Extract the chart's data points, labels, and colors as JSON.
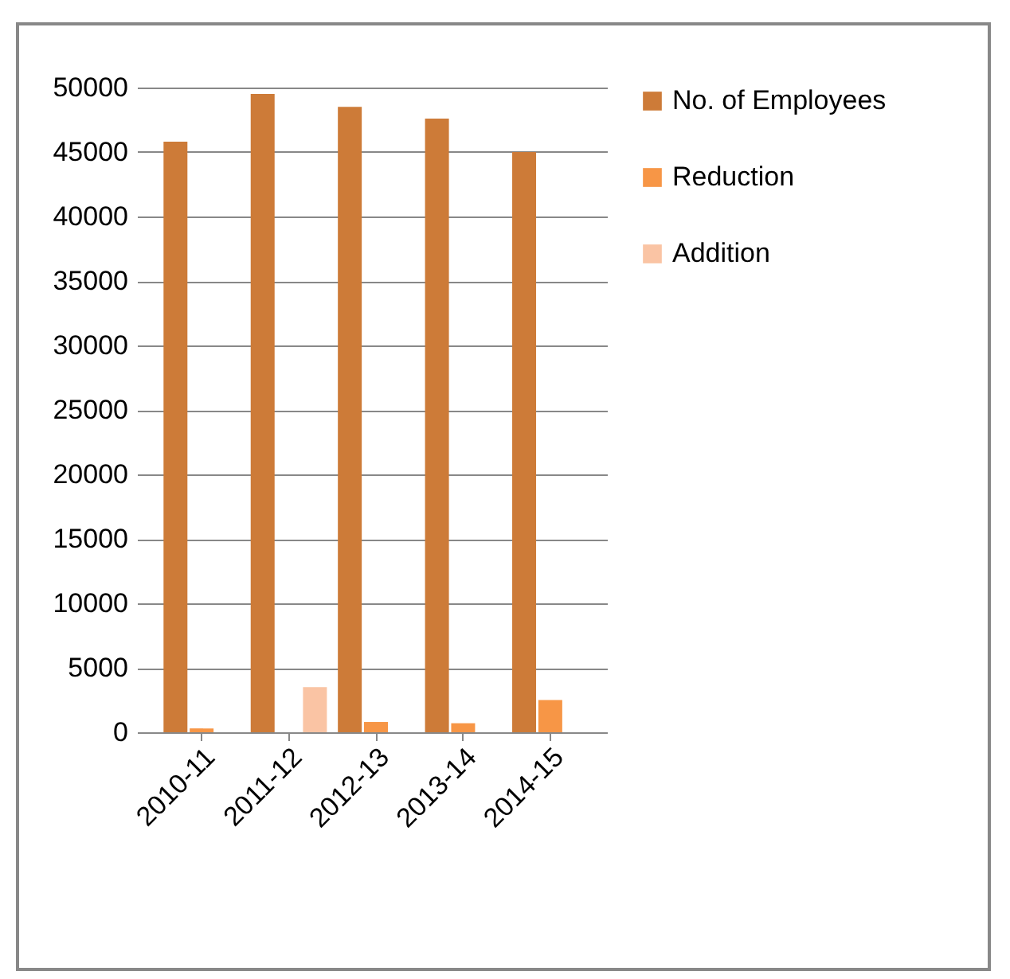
{
  "chart_data": {
    "type": "bar",
    "categories": [
      "2010-11",
      "2011-12",
      "2012-13",
      "2013-14",
      "2014-15"
    ],
    "series": [
      {
        "name": "No. of Employees",
        "color": "#cd7b38",
        "values": [
          45800,
          49500,
          48500,
          47600,
          45000
        ]
      },
      {
        "name": "Reduction",
        "color": "#f79646",
        "values": [
          300,
          null,
          800,
          700,
          2500
        ]
      },
      {
        "name": "Addition",
        "color": "#fac4a4",
        "values": [
          null,
          3500,
          null,
          null,
          null
        ]
      }
    ],
    "ylim": [
      0,
      50000
    ],
    "yticks": [
      0,
      5000,
      10000,
      15000,
      20000,
      25000,
      30000,
      35000,
      40000,
      45000,
      50000
    ],
    "grid": "y",
    "legend": "right"
  }
}
